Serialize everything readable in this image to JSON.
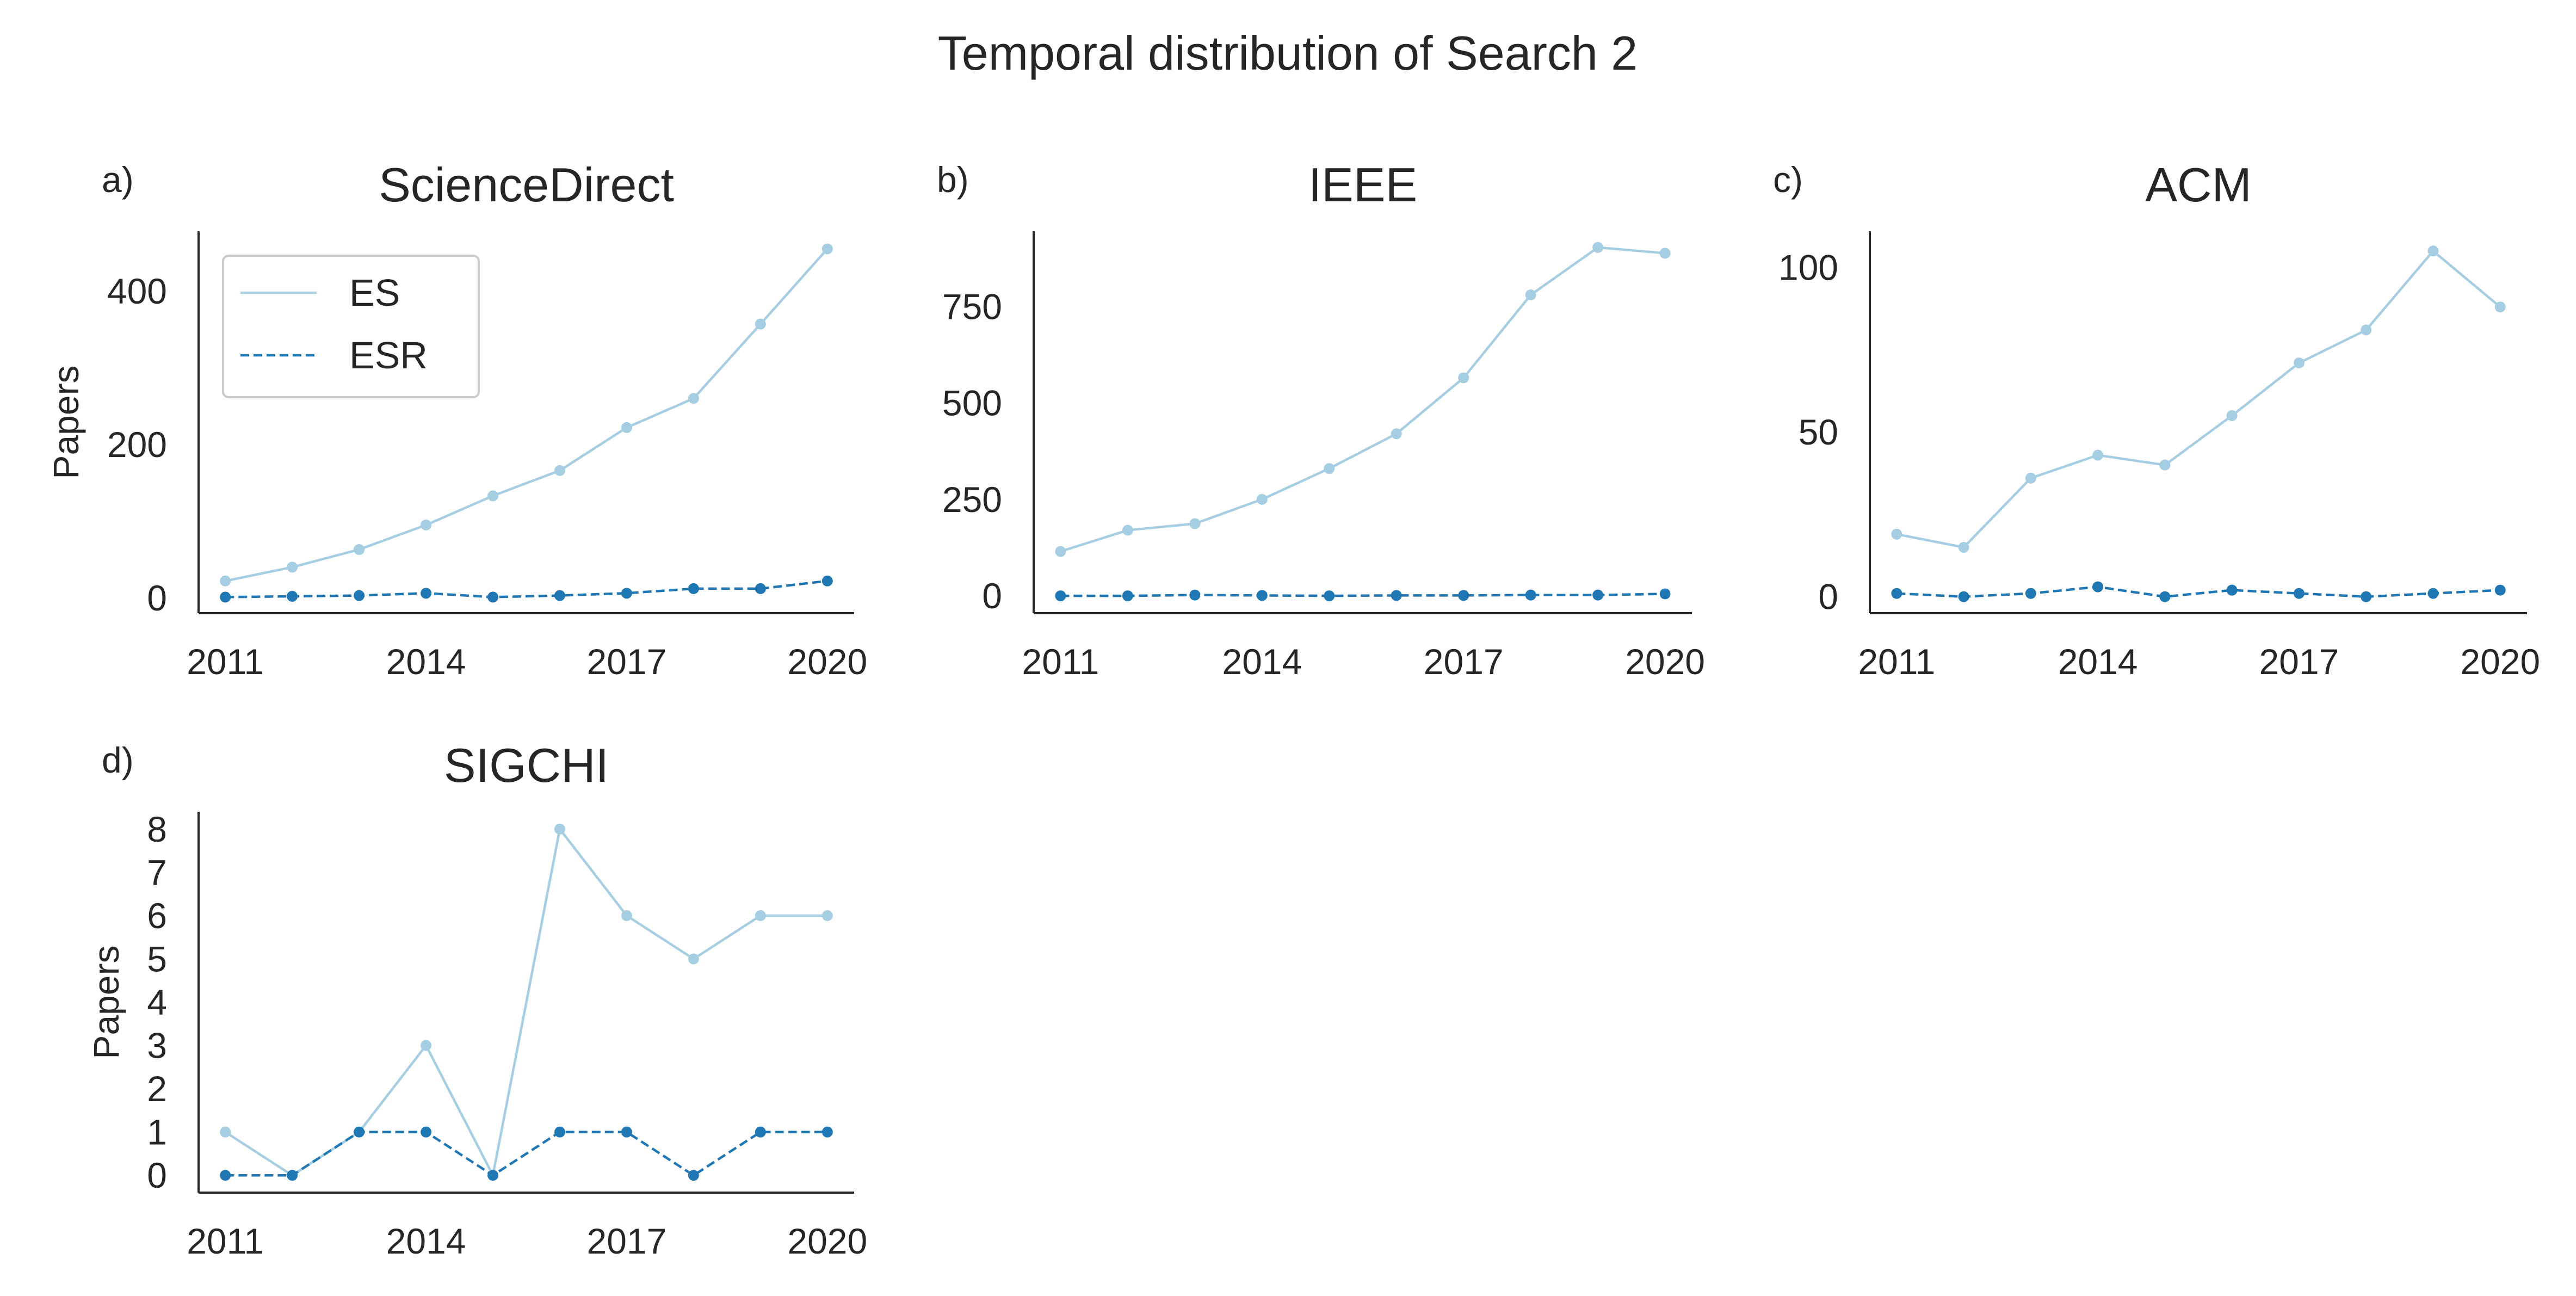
{
  "figure": {
    "title": "Temporal distribution of Search 2"
  },
  "colors": {
    "es": "#a6cee3",
    "esr": "#1f78b4",
    "axis": "#262626"
  },
  "legend": {
    "placement": "upper-left of panel a",
    "entries": [
      "ES",
      "ESR"
    ]
  },
  "chart_data": [
    {
      "type": "line",
      "panel_label": "a)",
      "title": "ScienceDirect",
      "xlabel": "",
      "ylabel": "Papers",
      "x": [
        2011,
        2012,
        2013,
        2014,
        2015,
        2016,
        2017,
        2018,
        2019,
        2020
      ],
      "xticks": [
        2011,
        2014,
        2017,
        2020
      ],
      "xlim": [
        2010.6,
        2020.4
      ],
      "yticks": [
        0,
        200,
        400
      ],
      "ylim": [
        -20,
        478
      ],
      "grid": false,
      "series": [
        {
          "name": "ES",
          "style": "solid",
          "values": [
            22,
            40,
            63,
            95,
            133,
            166,
            222,
            260,
            357,
            455
          ]
        },
        {
          "name": "ESR",
          "style": "dashed",
          "values": [
            1,
            2,
            3,
            6,
            1,
            3,
            6,
            12,
            12,
            22
          ]
        }
      ]
    },
    {
      "type": "line",
      "panel_label": "b)",
      "title": "IEEE",
      "xlabel": "",
      "ylabel": "",
      "x": [
        2011,
        2012,
        2013,
        2014,
        2015,
        2016,
        2017,
        2018,
        2019,
        2020
      ],
      "xticks": [
        2011,
        2014,
        2017,
        2020
      ],
      "xlim": [
        2010.6,
        2020.4
      ],
      "yticks": [
        0,
        250,
        500,
        750
      ],
      "ylim": [
        -45,
        945
      ],
      "grid": false,
      "series": [
        {
          "name": "ES",
          "style": "solid",
          "values": [
            115,
            170,
            187,
            250,
            330,
            420,
            565,
            780,
            903,
            888
          ]
        },
        {
          "name": "ESR",
          "style": "dashed",
          "values": [
            0,
            0,
            2,
            1,
            0,
            1,
            1,
            2,
            2,
            5
          ]
        }
      ]
    },
    {
      "type": "line",
      "panel_label": "c)",
      "title": "ACM",
      "xlabel": "",
      "ylabel": "",
      "x": [
        2011,
        2012,
        2013,
        2014,
        2015,
        2016,
        2017,
        2018,
        2019,
        2020
      ],
      "xticks": [
        2011,
        2014,
        2017,
        2020
      ],
      "xlim": [
        2010.6,
        2020.4
      ],
      "yticks": [
        0,
        50,
        100
      ],
      "ylim": [
        -5,
        111
      ],
      "grid": false,
      "series": [
        {
          "name": "ES",
          "style": "solid",
          "values": [
            19,
            15,
            36,
            43,
            40,
            55,
            71,
            81,
            105,
            88
          ]
        },
        {
          "name": "ESR",
          "style": "dashed",
          "values": [
            1,
            0,
            1,
            3,
            0,
            2,
            1,
            0,
            1,
            2
          ]
        }
      ]
    },
    {
      "type": "line",
      "panel_label": "d)",
      "title": "SIGCHI",
      "xlabel": "",
      "ylabel": "Papers",
      "x": [
        2011,
        2012,
        2013,
        2014,
        2015,
        2016,
        2017,
        2018,
        2019,
        2020
      ],
      "xticks": [
        2011,
        2014,
        2017,
        2020
      ],
      "xlim": [
        2010.6,
        2020.4
      ],
      "yticks": [
        0,
        1,
        2,
        3,
        4,
        5,
        6,
        7,
        8
      ],
      "ylim": [
        -0.4,
        8.4
      ],
      "grid": false,
      "series": [
        {
          "name": "ES",
          "style": "solid",
          "values": [
            1,
            0,
            1,
            3,
            0,
            8,
            6,
            5,
            6,
            6
          ]
        },
        {
          "name": "ESR",
          "style": "dashed",
          "values": [
            0,
            0,
            1,
            1,
            0,
            1,
            1,
            0,
            1,
            1
          ]
        }
      ]
    }
  ]
}
